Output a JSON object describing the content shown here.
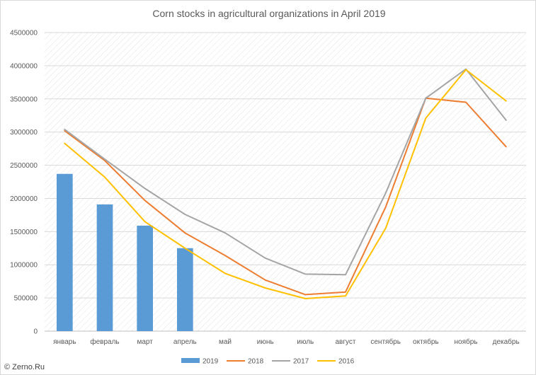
{
  "chart_data": {
    "type": "bar",
    "title": "Corn stocks in agricultural organizations in April 2019",
    "xlabel": "",
    "ylabel": "",
    "ylim": [
      0,
      4500000
    ],
    "y_ticks": [
      0,
      500000,
      1000000,
      1500000,
      2000000,
      2500000,
      3000000,
      3500000,
      4000000,
      4500000
    ],
    "categories": [
      "январь",
      "февраль",
      "март",
      "апрель",
      "май",
      "июнь",
      "июль",
      "август",
      "сентябрь",
      "октябрь",
      "ноябрь",
      "декабрь"
    ],
    "grid": true,
    "legend_position": "bottom",
    "series": [
      {
        "name": "2019",
        "type": "bar",
        "color": "#5b9bd5",
        "values": [
          2370000,
          1910000,
          1590000,
          1250000,
          null,
          null,
          null,
          null,
          null,
          null,
          null,
          null
        ]
      },
      {
        "name": "2018",
        "type": "line",
        "color": "#ed7d31",
        "values": [
          3020000,
          2570000,
          1970000,
          1480000,
          1140000,
          770000,
          550000,
          590000,
          1870000,
          3510000,
          3450000,
          2780000
        ]
      },
      {
        "name": "2017",
        "type": "line",
        "color": "#a5a5a5",
        "values": [
          3040000,
          2590000,
          2150000,
          1760000,
          1480000,
          1100000,
          860000,
          850000,
          2080000,
          3510000,
          3950000,
          3180000
        ]
      },
      {
        "name": "2016",
        "type": "line",
        "color": "#ffc000",
        "values": [
          2830000,
          2320000,
          1650000,
          1250000,
          870000,
          650000,
          490000,
          530000,
          1550000,
          3210000,
          3940000,
          3470000
        ]
      }
    ]
  },
  "copyright": "© Zerno.Ru"
}
